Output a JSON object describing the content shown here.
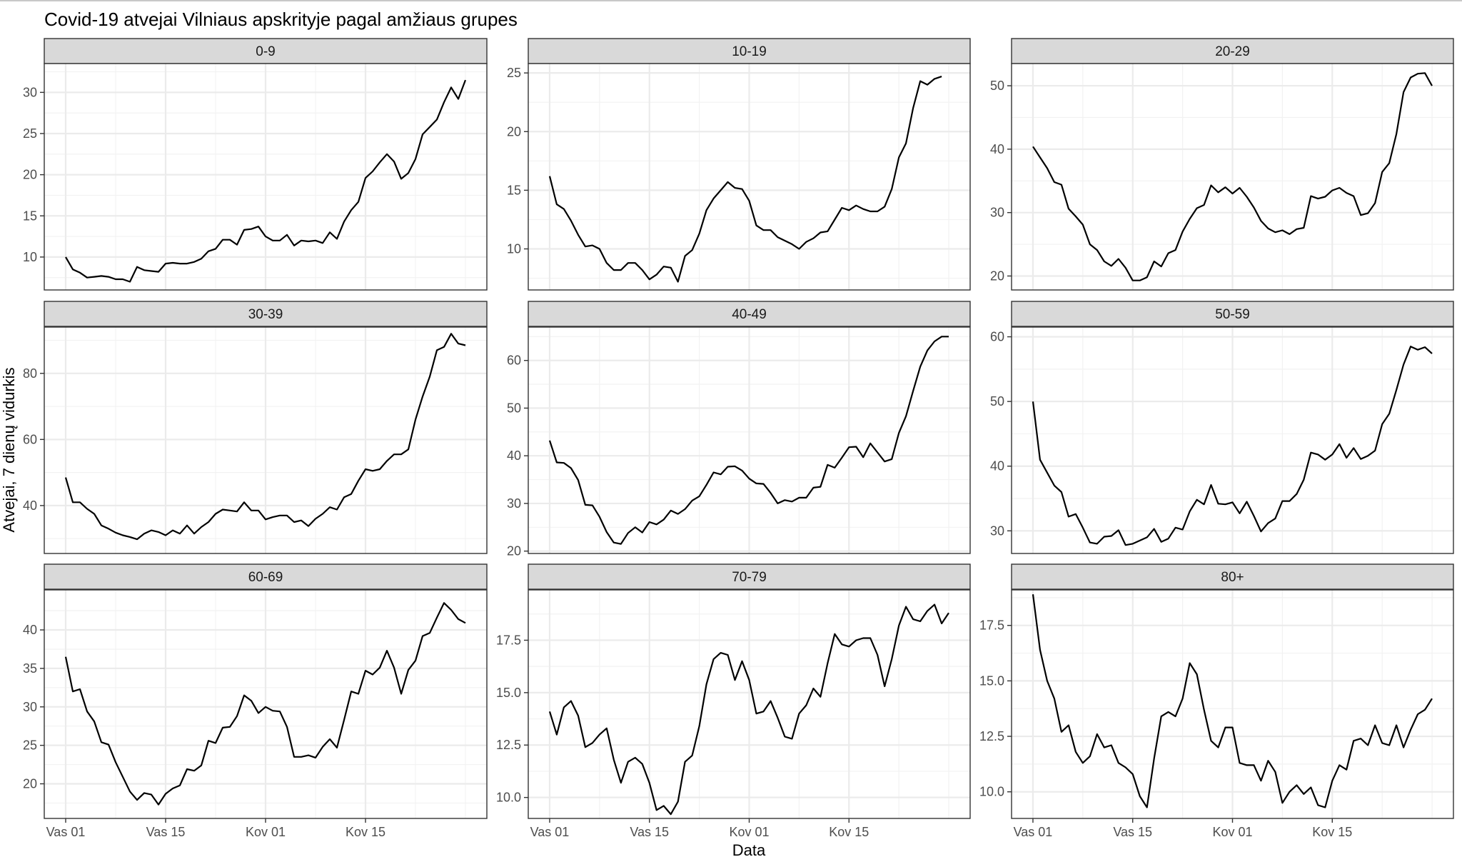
{
  "chart_data": {
    "type": "line",
    "title": "Covid-19 atvejai Vilniaus apskrityje pagal amžiaus grupes",
    "xlabel": "Data",
    "ylabel": "Atvejai, 7 dienų vidurkis",
    "x_ticks": [
      "Vas 01",
      "Vas 15",
      "Kov 01",
      "Kov 15"
    ],
    "x_tick_days": [
      0,
      14,
      28,
      42
    ],
    "x_range_days": [
      -3,
      59
    ],
    "x_start": "Vas 01",
    "grid": true,
    "facets": [
      {
        "panel": "0-9",
        "ylim": [
          6,
          33.5
        ],
        "y_ticks": [
          10,
          15,
          20,
          25,
          30
        ],
        "values": [
          10,
          8.5,
          8.1,
          7.5,
          7.6,
          7.7,
          7.6,
          7.3,
          7.3,
          7,
          8.8,
          8.4,
          8.3,
          8.2,
          9.2,
          9.3,
          9.2,
          9.2,
          9.4,
          9.8,
          10.7,
          11,
          12.1,
          12.1,
          11.5,
          13.3,
          13.4,
          13.7,
          12.5,
          12,
          12,
          12.7,
          11.4,
          12,
          11.9,
          12,
          11.7,
          13,
          12.2,
          14.3,
          15.7,
          16.7,
          19.6,
          20.4,
          21.5,
          22.5,
          21.6,
          19.5,
          20.2,
          21.9,
          24.9,
          25.8,
          26.7,
          28.8,
          30.6,
          29.2,
          31.5
        ]
      },
      {
        "panel": "10-19",
        "ylim": [
          6.5,
          25.8
        ],
        "y_ticks": [
          10,
          15,
          20,
          25
        ],
        "values": [
          16.2,
          13.8,
          13.4,
          12.4,
          11.2,
          10.2,
          10.3,
          10,
          8.8,
          8.2,
          8.2,
          8.8,
          8.8,
          8.2,
          7.4,
          7.8,
          8.5,
          8.4,
          7.2,
          9.4,
          9.9,
          11.3,
          13.3,
          14.3,
          15,
          15.7,
          15.2,
          15.1,
          14.1,
          12,
          11.6,
          11.6,
          11,
          10.7,
          10.4,
          10,
          10.6,
          10.9,
          11.4,
          11.5,
          12.5,
          13.5,
          13.3,
          13.7,
          13.4,
          13.2,
          13.2,
          13.6,
          15.1,
          17.8,
          19,
          22,
          24.3,
          24,
          24.5,
          24.7
        ]
      },
      {
        "panel": "20-29",
        "ylim": [
          17.8,
          53.5
        ],
        "y_ticks": [
          20,
          30,
          40,
          50
        ],
        "values": [
          40.4,
          38.7,
          37,
          34.8,
          34.4,
          30.6,
          29.4,
          28.1,
          25,
          24.1,
          22.3,
          21.6,
          22.7,
          21.3,
          19.3,
          19.3,
          19.8,
          22.3,
          21.5,
          23.6,
          24.1,
          27,
          29,
          30.7,
          31.2,
          34.3,
          33.2,
          34,
          33,
          33.9,
          32.5,
          30.8,
          28.7,
          27.5,
          26.9,
          27.2,
          26.6,
          27.4,
          27.6,
          32.6,
          32.2,
          32.5,
          33.5,
          33.9,
          33.1,
          32.6,
          29.6,
          29.9,
          31.5,
          36.4,
          37.8,
          42.4,
          49,
          51.3,
          51.9,
          52,
          50
        ]
      },
      {
        "panel": "30-39",
        "ylim": [
          25.5,
          94
        ],
        "y_ticks": [
          40,
          60,
          80
        ],
        "values": [
          48.5,
          41,
          41,
          39,
          37.5,
          34,
          33,
          31.8,
          31,
          30.5,
          29.8,
          31.5,
          32.5,
          32,
          31,
          32.5,
          31.5,
          34,
          31.5,
          33.5,
          35,
          37.5,
          38.8,
          38.5,
          38.2,
          41,
          38.5,
          38.5,
          35.8,
          36.5,
          37,
          37,
          35,
          35.5,
          33.8,
          36,
          37.5,
          39.5,
          38.8,
          42.5,
          43.5,
          47.5,
          51,
          50.5,
          51,
          53.5,
          55.5,
          55.5,
          57,
          66,
          73,
          79,
          87,
          88,
          92,
          89,
          88.5
        ]
      },
      {
        "panel": "40-49",
        "ylim": [
          19.5,
          67
        ],
        "y_ticks": [
          20,
          30,
          40,
          50,
          60
        ],
        "values": [
          43.2,
          38.6,
          38.5,
          37.4,
          34.9,
          29.7,
          29.6,
          27.2,
          24,
          21.8,
          21.5,
          23.8,
          25,
          23.9,
          26.1,
          25.6,
          26.6,
          28.5,
          27.8,
          28.8,
          30.6,
          31.5,
          33.9,
          36.5,
          36.1,
          37.7,
          37.8,
          36.9,
          35.2,
          34.2,
          34.1,
          32.2,
          30,
          30.7,
          30.4,
          31.2,
          31.2,
          33.3,
          33.5,
          38.1,
          37.5,
          39.6,
          41.8,
          41.9,
          39.7,
          42.6,
          40.7,
          38.8,
          39.3,
          44.8,
          48.3,
          53.6,
          58.7,
          62.1,
          64,
          65,
          65
        ]
      },
      {
        "panel": "50-59",
        "ylim": [
          26.5,
          61.5
        ],
        "y_ticks": [
          30,
          40,
          50,
          60
        ],
        "values": [
          50,
          41,
          39,
          37,
          36,
          32.2,
          32.6,
          30.5,
          28.2,
          28,
          29.1,
          29.2,
          30.1,
          27.8,
          28,
          28.5,
          29,
          30.3,
          28.3,
          28.8,
          30.5,
          30.2,
          33,
          34.8,
          34.1,
          37.1,
          34.2,
          34.1,
          34.4,
          32.7,
          34.5,
          32.3,
          29.9,
          31.2,
          31.9,
          34.6,
          34.6,
          35.7,
          37.9,
          42.1,
          41.8,
          41,
          41.8,
          43.4,
          41.3,
          42.8,
          41.1,
          41.6,
          42.4,
          46.5,
          48.1,
          51.8,
          55.7,
          58.5,
          58,
          58.4,
          57.4
        ]
      },
      {
        "panel": "60-69",
        "ylim": [
          15.5,
          45.2
        ],
        "y_ticks": [
          20,
          25,
          30,
          35,
          40
        ],
        "values": [
          36.5,
          32,
          32.3,
          29.4,
          28.1,
          25.4,
          25.1,
          22.8,
          20.9,
          19,
          17.9,
          18.8,
          18.6,
          17.3,
          18.7,
          19.4,
          19.8,
          21.9,
          21.7,
          22.4,
          25.6,
          25.3,
          27.3,
          27.4,
          28.8,
          31.5,
          30.8,
          29.2,
          30,
          29.5,
          29.4,
          27.4,
          23.5,
          23.5,
          23.7,
          23.4,
          24.8,
          25.8,
          24.7,
          28.3,
          32,
          31.7,
          34.7,
          34.2,
          35.1,
          37.3,
          35.1,
          31.7,
          34.8,
          36,
          39.2,
          39.6,
          41.6,
          43.5,
          42.6,
          41.4,
          40.9
        ]
      },
      {
        "panel": "70-79",
        "ylim": [
          9.0,
          19.9
        ],
        "y_ticks": [
          10.0,
          12.5,
          15.0,
          17.5
        ],
        "values": [
          14.1,
          13,
          14.3,
          14.6,
          13.9,
          12.4,
          12.6,
          13,
          13.3,
          11.8,
          10.7,
          11.7,
          11.9,
          11.6,
          10.7,
          9.4,
          9.6,
          9.2,
          9.8,
          11.7,
          12,
          13.4,
          15.4,
          16.6,
          16.9,
          16.8,
          15.6,
          16.5,
          15.6,
          14,
          14.1,
          14.6,
          13.8,
          12.9,
          12.8,
          14,
          14.4,
          15.2,
          14.8,
          16.4,
          17.8,
          17.3,
          17.2,
          17.5,
          17.6,
          17.6,
          16.8,
          15.3,
          16.6,
          18.2,
          19.1,
          18.5,
          18.4,
          18.9,
          19.2,
          18.3,
          18.8
        ]
      },
      {
        "panel": "80+",
        "ylim": [
          8.8,
          19.1
        ],
        "y_ticks": [
          10.0,
          12.5,
          15.0,
          17.5
        ],
        "values": [
          18.9,
          16.4,
          15,
          14.2,
          12.7,
          13,
          11.8,
          11.3,
          11.6,
          12.6,
          12,
          12.1,
          11.3,
          11.1,
          10.8,
          9.8,
          9.3,
          11.5,
          13.4,
          13.6,
          13.4,
          14.2,
          15.8,
          15.3,
          13.7,
          12.3,
          12,
          12.9,
          12.9,
          11.3,
          11.2,
          11.2,
          10.5,
          11.4,
          10.9,
          9.5,
          10,
          10.3,
          9.9,
          10.2,
          9.4,
          9.3,
          10.5,
          11.2,
          11,
          12.3,
          12.4,
          12.1,
          13,
          12.2,
          12.1,
          13,
          12,
          12.8,
          13.5,
          13.7,
          14.2
        ]
      }
    ]
  }
}
